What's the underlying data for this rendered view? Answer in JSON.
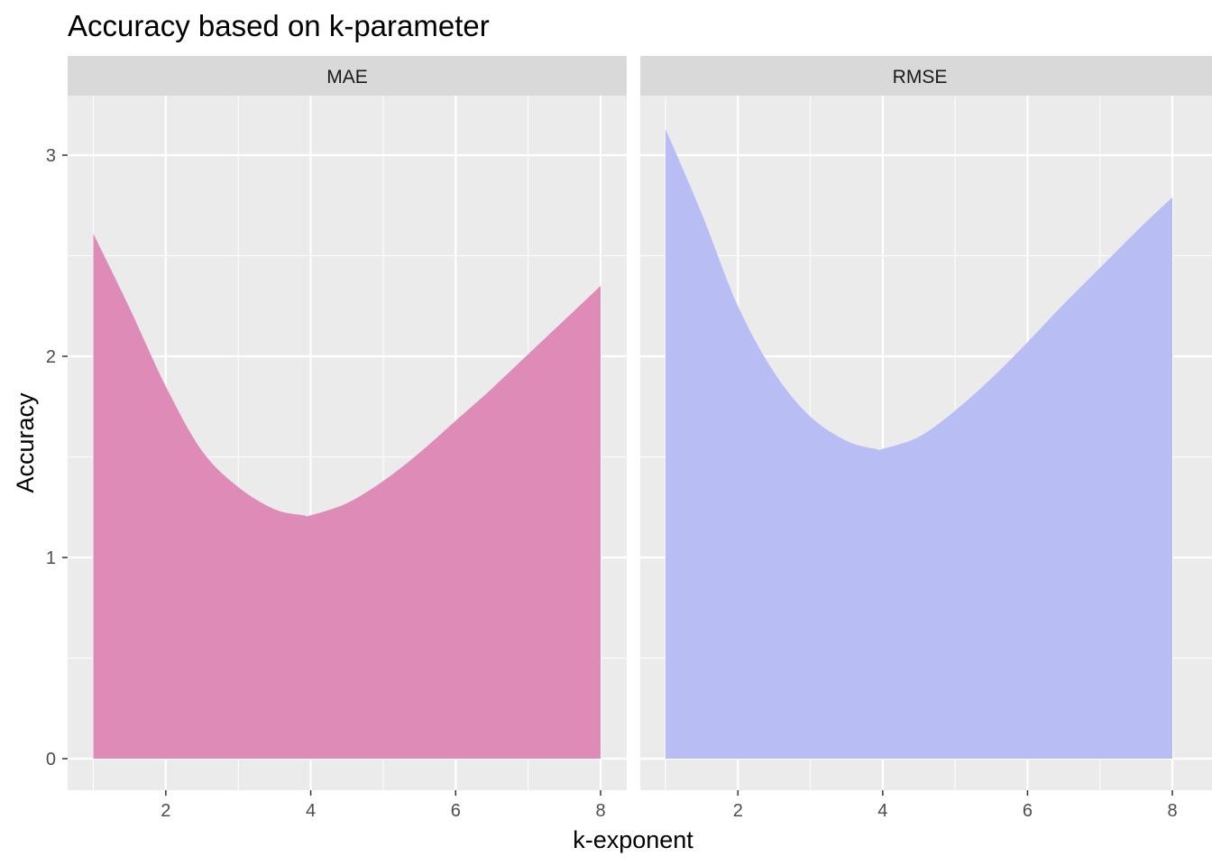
{
  "chart_data": {
    "type": "area",
    "title": "Accuracy based on k-parameter",
    "xlabel": "k-exponent",
    "ylabel": "Accuracy",
    "xlim": [
      1,
      8
    ],
    "ylim": [
      0,
      3.13
    ],
    "x_ticks": [
      2,
      4,
      6,
      8
    ],
    "y_ticks": [
      0,
      1,
      2,
      3
    ],
    "grid": true,
    "legend": "none",
    "facets": [
      {
        "strip_label": "MAE",
        "color": "#DE8BB8",
        "x": [
          1.0,
          1.5,
          2.0,
          2.5,
          3.0,
          3.5,
          3.9,
          4.0,
          4.5,
          5.0,
          5.5,
          6.0,
          6.5,
          7.0,
          7.5,
          8.0
        ],
        "y": [
          2.61,
          2.24,
          1.85,
          1.53,
          1.35,
          1.24,
          1.21,
          1.21,
          1.27,
          1.38,
          1.52,
          1.68,
          1.84,
          2.01,
          2.18,
          2.35
        ]
      },
      {
        "strip_label": "RMSE",
        "color": "#B8BEF4",
        "x": [
          1.0,
          1.5,
          2.0,
          2.5,
          3.0,
          3.5,
          3.9,
          4.0,
          4.5,
          5.0,
          5.5,
          6.0,
          6.5,
          7.0,
          7.5,
          8.0
        ],
        "y": [
          3.13,
          2.71,
          2.25,
          1.92,
          1.7,
          1.58,
          1.54,
          1.54,
          1.6,
          1.73,
          1.89,
          2.07,
          2.26,
          2.44,
          2.62,
          2.79
        ]
      }
    ]
  }
}
